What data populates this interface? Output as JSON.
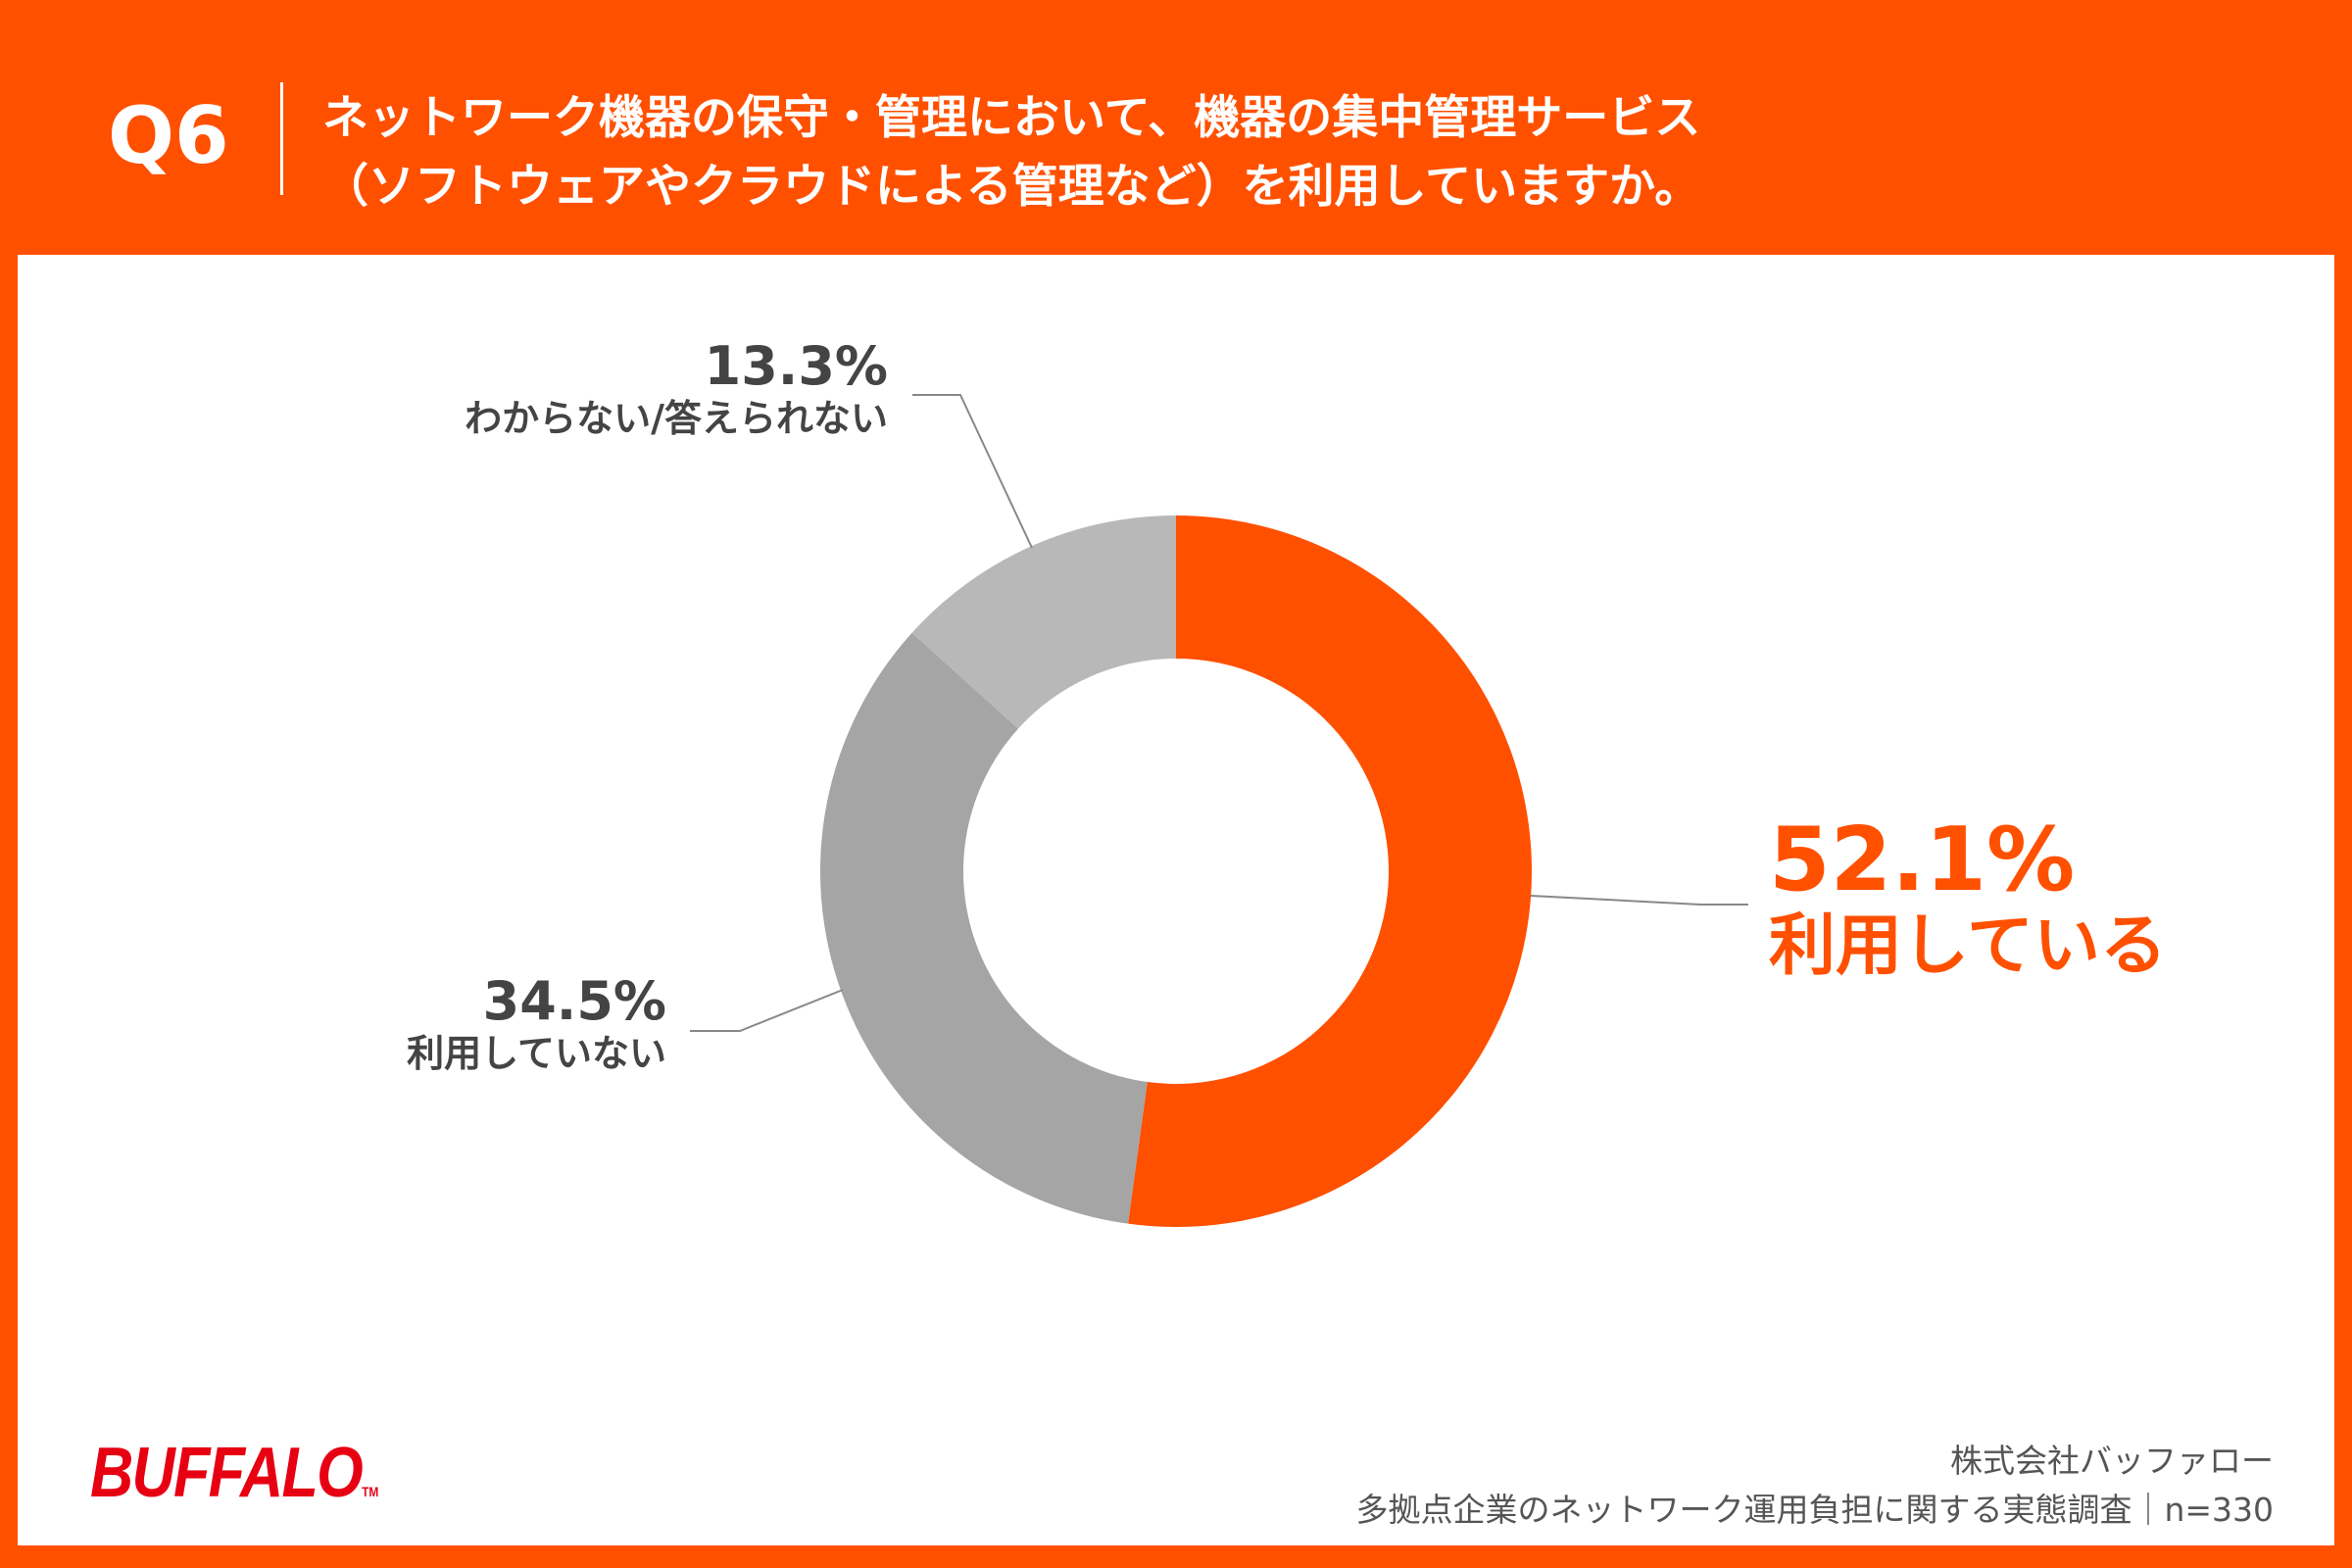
{
  "header": {
    "question_number": "Q6",
    "title_lines": [
      "ネットワーク機器の保守・管理において、機器の集中管理サービス",
      "（ソフトウェアやクラウドによる管理など）を利用していますか。"
    ]
  },
  "chart_data": {
    "type": "pie",
    "variant": "donut",
    "start_angle": "top, clockwise",
    "slices": [
      {
        "label": "利用している",
        "value": 52.1,
        "display": "52.1%",
        "color": "#FF5000"
      },
      {
        "label": "利用していない",
        "value": 34.5,
        "display": "34.5%",
        "color": "#A5A5A5"
      },
      {
        "label": "わからない/答えられない",
        "value": 13.3,
        "display": "13.3%",
        "color": "#B8B8B8"
      }
    ]
  },
  "footer": {
    "logo": "BUFFALO",
    "company": "株式会社バッファロー",
    "survey": "多拠点企業のネットワーク運用負担に関する実態調査｜n=330"
  },
  "colors": {
    "brand": "#FF5000",
    "logo": "#E60012"
  }
}
